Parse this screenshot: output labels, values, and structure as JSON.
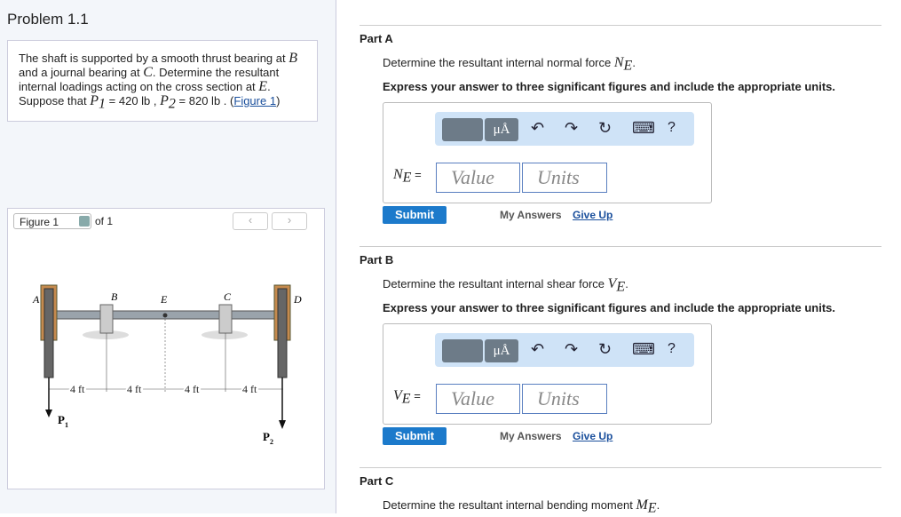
{
  "problem": {
    "title": "Problem 1.1",
    "statement": [
      "The shaft is supported by a smooth thrust bearing at",
      "B",
      "and a journal bearing at",
      "C",
      ". Determine the resultant internal loadings acting on the cross section at",
      "E",
      ". Suppose that",
      "P",
      "1",
      "= 420 lb ,",
      "P",
      "2",
      "= 820 lb .",
      "(",
      "Figure 1",
      ")"
    ]
  },
  "figure": {
    "selector": "Figure 1",
    "count": "of 1",
    "labels": {
      "A": "A",
      "B": "B",
      "E": "E",
      "C": "C",
      "D": "D"
    },
    "dims": [
      "4 ft",
      "4 ft",
      "4 ft",
      "4 ft"
    ],
    "loads": [
      {
        "symbol": "P",
        "subscript": "1"
      },
      {
        "symbol": "P",
        "subscript": "2"
      }
    ]
  },
  "parts": [
    {
      "label": "Part A",
      "question": "Determine the resultant internal normal force",
      "symbol": "N",
      "subscript": "E",
      "end": ".",
      "instruction": "Express your answer to three significant figures and include the appropriate units.",
      "answer": {
        "symbol": "N",
        "subscript": "E",
        "equals": "="
      },
      "toolbar": {
        "units": "μÅ",
        "help": "?"
      },
      "value_placeholder": "Value",
      "units_placeholder": "Units",
      "submit": "Submit",
      "my_answers": "My Answers",
      "give_up": "Give Up"
    },
    {
      "label": "Part B",
      "question": "Determine the resultant internal shear force",
      "symbol": "V",
      "subscript": "E",
      "end": ".",
      "instruction": "Express your answer to three significant figures and include the appropriate units.",
      "answer": {
        "symbol": "V",
        "subscript": "E",
        "equals": "="
      },
      "toolbar": {
        "units": "μÅ",
        "help": "?"
      },
      "value_placeholder": "Value",
      "units_placeholder": "Units",
      "submit": "Submit",
      "my_answers": "My Answers",
      "give_up": "Give Up"
    },
    {
      "label": "Part C",
      "question": "Determine the resultant internal bending moment",
      "symbol": "M",
      "subscript": "E",
      "end": "."
    }
  ]
}
